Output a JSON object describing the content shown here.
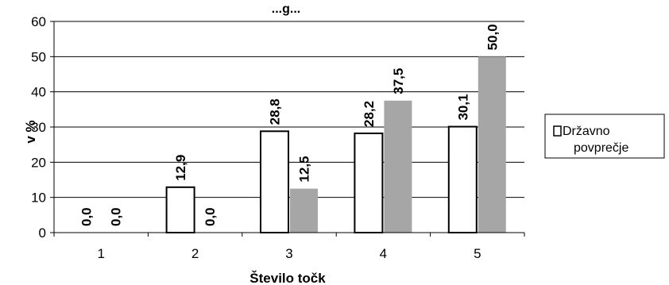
{
  "chart_data": {
    "type": "bar",
    "title": "...g...",
    "xlabel": "Število točk",
    "ylabel": "v %",
    "ylim": [
      0,
      60
    ],
    "yticks": [
      "0",
      "10",
      "20",
      "30",
      "40",
      "50",
      "60"
    ],
    "categories": [
      "1",
      "2",
      "3",
      "4",
      "5"
    ],
    "grid": true,
    "legend_position": "right",
    "series": [
      {
        "name": "Državno povprečje",
        "values": [
          0.0,
          12.9,
          28.8,
          28.2,
          30.1
        ],
        "labels": [
          "0,0",
          "12,9",
          "28,8",
          "28,2",
          "30,1"
        ],
        "fill": "#ffffff",
        "stroke": "#000000"
      },
      {
        "name": "",
        "values": [
          0.0,
          0.0,
          12.5,
          37.5,
          50.0
        ],
        "labels": [
          "0,0",
          "0,0",
          "12,5",
          "37,5",
          "50,0"
        ],
        "fill": "#a6a6a6",
        "stroke": "none"
      }
    ],
    "legend_lines": [
      "Državno",
      "povprečje"
    ]
  }
}
